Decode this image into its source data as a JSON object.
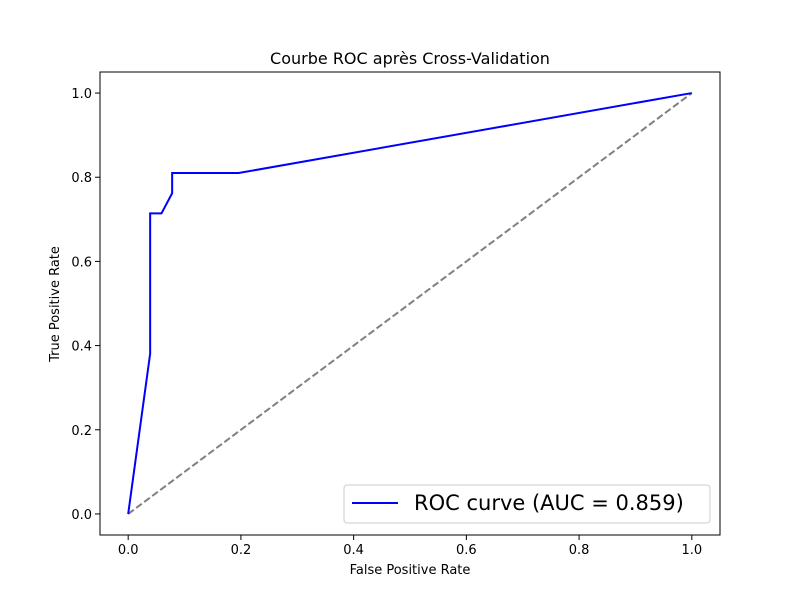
{
  "chart_data": {
    "type": "line",
    "title": "Courbe ROC après Cross-Validation",
    "xlabel": "False Positive Rate",
    "ylabel": "True Positive Rate",
    "xlim": [
      -0.05,
      1.05
    ],
    "ylim": [
      -0.05,
      1.05
    ],
    "xticks": [
      0.0,
      0.2,
      0.4,
      0.6,
      0.8,
      1.0
    ],
    "yticks": [
      0.0,
      0.2,
      0.4,
      0.6,
      0.8,
      1.0
    ],
    "xtick_labels": [
      "0.0",
      "0.2",
      "0.4",
      "0.6",
      "0.8",
      "1.0"
    ],
    "ytick_labels": [
      "0.0",
      "0.2",
      "0.4",
      "0.6",
      "0.8",
      "1.0"
    ],
    "grid": false,
    "legend_position": "lower-right",
    "series": [
      {
        "name": "ROC curve (AUC = 0.859)",
        "color": "#0000ff",
        "style": "solid",
        "x": [
          0.0,
          0.039,
          0.039,
          0.059,
          0.078,
          0.078,
          0.196,
          1.0
        ],
        "y": [
          0.0,
          0.381,
          0.714,
          0.714,
          0.762,
          0.81,
          0.81,
          1.0
        ]
      },
      {
        "color": "#808080",
        "style": "dashed",
        "x": [
          0.0,
          1.0
        ],
        "y": [
          0.0,
          1.0
        ]
      }
    ]
  }
}
